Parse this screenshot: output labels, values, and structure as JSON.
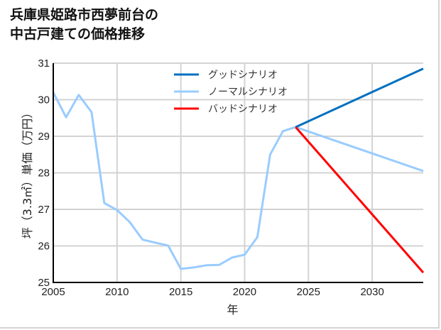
{
  "title": "兵庫県姫路市西夢前台の\n中古戸建ての価格推移",
  "chart_data": {
    "type": "line",
    "title": "兵庫県姫路市西夢前台の中古戸建ての価格推移",
    "xlabel": "年",
    "ylabel": "坪（3.3㎡）単価（万円）",
    "xlim": [
      2005,
      2034
    ],
    "ylim": [
      25,
      31
    ],
    "xticks": [
      2005,
      2010,
      2015,
      2020,
      2025,
      2030
    ],
    "yticks": [
      25,
      26,
      27,
      28,
      29,
      30,
      31
    ],
    "grid": true,
    "legend_position": "upper center",
    "series": [
      {
        "name": "グッドシナリオ",
        "color": "#0070c0",
        "x": [
          2024,
          2034
        ],
        "y": [
          29.25,
          30.85
        ]
      },
      {
        "name": "ノーマルシナリオ",
        "color": "#99ccff",
        "x": [
          2005,
          2006,
          2007,
          2008,
          2009,
          2010,
          2011,
          2012,
          2013,
          2014,
          2015,
          2016,
          2017,
          2018,
          2019,
          2020,
          2021,
          2022,
          2023,
          2024,
          2034
        ],
        "y": [
          30.2,
          29.52,
          30.13,
          29.66,
          27.17,
          26.98,
          26.65,
          26.17,
          26.09,
          26.01,
          25.37,
          25.41,
          25.47,
          25.48,
          25.68,
          25.76,
          26.24,
          28.5,
          29.14,
          29.25,
          28.05
        ]
      },
      {
        "name": "バッドシナリオ",
        "color": "#ff0000",
        "x": [
          2024,
          2034
        ],
        "y": [
          29.25,
          25.27
        ]
      }
    ]
  }
}
